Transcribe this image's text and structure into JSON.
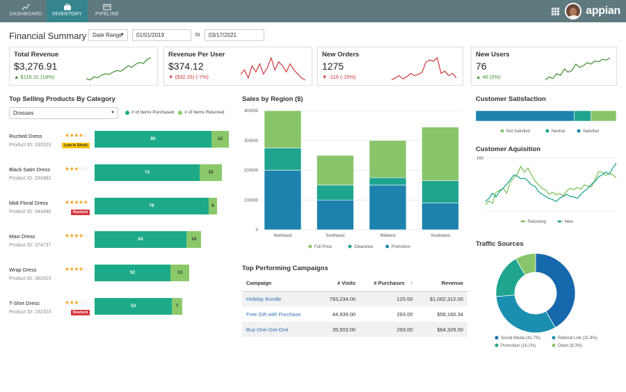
{
  "nav": {
    "tabs": [
      {
        "label": "DASHBOARD",
        "icon": "chart-line-icon"
      },
      {
        "label": "INVENTORY",
        "icon": "briefcase-icon",
        "active": true
      },
      {
        "label": "PIPELINE",
        "icon": "card-icon"
      }
    ],
    "brand": "appian",
    "icons": [
      "apps-grid-icon",
      "avatar"
    ]
  },
  "header": {
    "title": "Financial Summary",
    "date_range_label": "Date Range",
    "start_date": "01/01/2019",
    "to_label": "to",
    "end_date": "03/17/2021"
  },
  "kpis": [
    {
      "label": "Total Revenue",
      "value": "$3,276.91",
      "delta": "$116.31 (18%)",
      "trend": "up",
      "color": "#3a8a2a"
    },
    {
      "label": "Revenue Per User",
      "value": "$374.12",
      "delta": "($32.25) (-7%)",
      "trend": "down",
      "color": "#d0343a"
    },
    {
      "label": "New Orders",
      "value": "1275",
      "delta": "-116 (-15%)",
      "trend": "down",
      "color": "#d0343a"
    },
    {
      "label": "New Users",
      "value": "76",
      "delta": "46 (2%)",
      "trend": "up",
      "color": "#3a8a2a"
    }
  ],
  "products": {
    "title": "Top Selling Products By Category",
    "category": "Dresses",
    "legend": [
      "# of Items Purchased",
      "# of Items Returned"
    ],
    "colors": {
      "purchased": "#1caa88",
      "returned": "#8ac86a",
      "star": "#f4a21c"
    },
    "items": [
      {
        "name": "Ruched Dress",
        "id": "Product ID: 192323",
        "rating": 4,
        "badge": "Low in Stock",
        "badge_type": "low",
        "purchased": "80",
        "returned": "12",
        "purchased_value": 80,
        "returned_value": 12
      },
      {
        "name": "Black Satin Dress",
        "id": "Product ID: 293482",
        "rating": 3,
        "badge": "",
        "badge_type": "",
        "purchased": "72",
        "returned": "15",
        "purchased_value": 72,
        "returned_value": 15
      },
      {
        "name": "Midi Floral Dress",
        "id": "Product ID: 343498",
        "rating": 5,
        "badge": "Restock",
        "badge_type": "restock",
        "purchased": "78",
        "returned": "6",
        "purchased_value": 78,
        "returned_value": 6
      },
      {
        "name": "Maxi Dress",
        "id": "Product ID: 374737",
        "rating": 4,
        "badge": "",
        "badge_type": "",
        "purchased": "63",
        "returned": "10",
        "purchased_value": 63,
        "returned_value": 10
      },
      {
        "name": "Wrap Dress",
        "id": "Product ID: 382023",
        "rating": 4,
        "badge": "",
        "badge_type": "",
        "purchased": "52",
        "returned": "13",
        "purchased_value": 52,
        "returned_value": 13
      },
      {
        "name": "T-Shirt Dress",
        "id": "Product ID: 232323",
        "rating": 3,
        "badge": "Restock",
        "badge_type": "restock",
        "purchased": "53",
        "returned": "7",
        "purchased_value": 53,
        "returned_value": 7
      }
    ]
  },
  "sales_by_region": {
    "title": "Sales by Region ($)"
  },
  "campaigns": {
    "title": "Top Performing Campaigns",
    "headers": [
      "Campaign",
      "# Visits",
      "# Purchases",
      "Revenue"
    ],
    "rows": [
      {
        "name": "Holiday Bundle",
        "visits": "793,234.00",
        "purchases": "125.00",
        "revenue": "$1,002,312.00"
      },
      {
        "name": "Free Gift with Purchase",
        "visits": "44,939.00",
        "purchases": "293.00",
        "revenue": "$58,160.34"
      },
      {
        "name": "Buy-One-Get-One",
        "visits": "35,503.00",
        "purchases": "293.00",
        "revenue": "$64,329.00"
      }
    ]
  },
  "customer_satisfaction": {
    "title": "Customer Satisfaction"
  },
  "customer_acquisition": {
    "title": "Customer Aquisition"
  },
  "traffic_sources": {
    "title": "Traffic Sources"
  },
  "chart_data": [
    {
      "type": "bar",
      "stacked": true,
      "title": "Sales by Region ($)",
      "categories": [
        "Northeast",
        "Southeast",
        "Midwest",
        "Southwest"
      ],
      "series": [
        {
          "name": "Promotion",
          "color": "#1d82ad",
          "values": [
            200000,
            100000,
            150000,
            90000
          ]
        },
        {
          "name": "Clearance",
          "color": "#1fa58f",
          "values": [
            75000,
            50000,
            25000,
            75000
          ]
        },
        {
          "name": "Full Price",
          "color": "#88c56a",
          "values": [
            125000,
            100000,
            125000,
            180000
          ]
        }
      ],
      "ylim": [
        0,
        400000
      ],
      "yticks": [
        "0",
        "100000",
        "200000",
        "300000",
        "400000"
      ],
      "grid": true,
      "legend": "bottom"
    },
    {
      "type": "bar",
      "stacked": true,
      "horizontal": true,
      "title": "Customer Satisfaction",
      "series": [
        {
          "name": "Satisfied",
          "color": "#1d82ad",
          "values": [
            70
          ]
        },
        {
          "name": "Neutral",
          "color": "#1fa58f",
          "values": [
            12
          ]
        },
        {
          "name": "Not Satisfied",
          "color": "#88c56a",
          "values": [
            18
          ]
        }
      ],
      "legend_order": [
        "Not Satisfied",
        "Neutral",
        "Satisfied"
      ],
      "legend": "bottom"
    },
    {
      "type": "line",
      "title": "Customer Aquisition",
      "ylim": [
        0,
        160
      ],
      "yticks": [
        "160"
      ],
      "series": [
        {
          "name": "Returning",
          "color": "#7bc35a",
          "values": [
            20,
            32,
            25,
            58,
            64,
            70,
            55,
            88,
            100,
            112,
            135,
            118,
            130,
            110,
            92,
            80,
            70,
            65,
            52,
            58,
            50,
            54,
            48,
            62,
            70,
            66,
            72,
            68,
            80,
            76,
            74,
            95,
            120,
            118,
            108,
            114,
            110,
            102
          ]
        },
        {
          "name": "New",
          "color": "#1fa58f",
          "values": [
            30,
            40,
            55,
            44,
            60,
            70,
            82,
            95,
            110,
            106,
            98,
            100,
            92,
            80,
            76,
            60,
            52,
            46,
            40,
            36,
            30,
            40,
            46,
            52,
            45,
            44,
            40,
            52,
            62,
            70,
            82,
            90,
            104,
            110,
            118,
            112,
            130,
            145
          ]
        }
      ],
      "legend": "bottom"
    },
    {
      "type": "pie",
      "donut": true,
      "title": "Traffic Sources",
      "labels": [
        "Social Media (41.7%)",
        "Referral Link (31.9%)",
        "Promotion (18.1%)",
        "Direct (8.3%)"
      ],
      "values": [
        41.7,
        31.9,
        18.1,
        8.3
      ],
      "colors": [
        "#1668ad",
        "#1b8fb0",
        "#1fa58f",
        "#88c56a"
      ],
      "legend": "bottom"
    }
  ],
  "kpi_sparks": [
    [
      12,
      10,
      14,
      13,
      16,
      18,
      17,
      20,
      22,
      21,
      24,
      28,
      26,
      30,
      32,
      31,
      36,
      38
    ],
    [
      22,
      24,
      20,
      26,
      23,
      27,
      22,
      25,
      30,
      24,
      28,
      26,
      23,
      27,
      24,
      22,
      20,
      19
    ],
    [
      10,
      12,
      14,
      11,
      13,
      16,
      14,
      15,
      17,
      26,
      28,
      27,
      30,
      16,
      18,
      14,
      16,
      12
    ],
    [
      10,
      14,
      12,
      18,
      16,
      24,
      20,
      22,
      30,
      26,
      28,
      32,
      30,
      34,
      33,
      36,
      35,
      38
    ]
  ]
}
